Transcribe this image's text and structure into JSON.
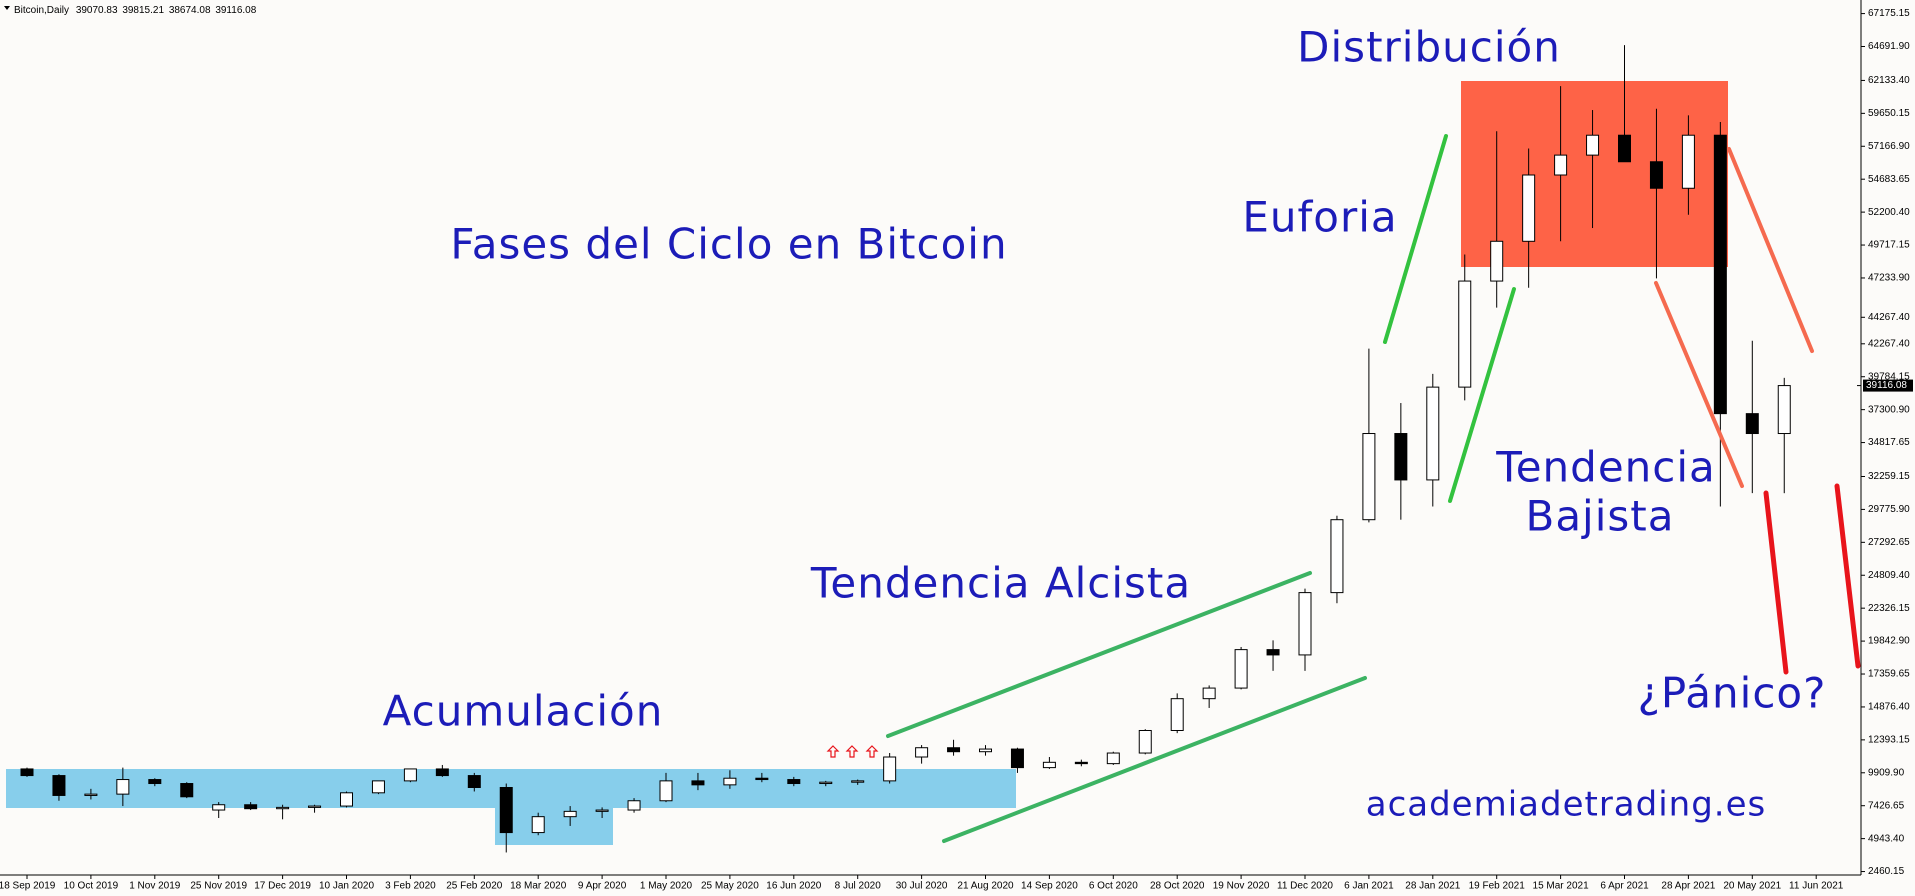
{
  "chart_data": {
    "type": "candlestick",
    "title": "Fases del Ciclo en Bitcoin",
    "header": {
      "symbol": "Bitcoin,Daily",
      "open": 39070.83,
      "high": 39815.21,
      "low": 38674.08,
      "close": 39116.08
    },
    "annotations": [
      "Distribución",
      "Euforia",
      "Tendencia Alcista",
      "Acumulación",
      "Tendencia",
      "Bajista",
      "¿Pánico?",
      "academiadetrading.es"
    ],
    "x_labels": [
      "18 Sep 2019",
      "10 Oct 2019",
      "1 Nov 2019",
      "25 Nov 2019",
      "17 Dec 2019",
      "10 Jan 2020",
      "3 Feb 2020",
      "25 Feb 2020",
      "18 Mar 2020",
      "9 Apr 2020",
      "1 May 2020",
      "25 May 2020",
      "16 Jun 2020",
      "8 Jul 2020",
      "30 Jul 2020",
      "21 Aug 2020",
      "14 Sep 2020",
      "6 Oct 2020",
      "28 Oct 2020",
      "19 Nov 2020",
      "11 Dec 2020",
      "6 Jan 2021",
      "28 Jan 2021",
      "19 Feb 2021",
      "15 Mar 2021",
      "6 Apr 2021",
      "28 Apr 2021",
      "20 May 2021",
      "11 Jun 2021"
    ],
    "open": [
      10200,
      9700,
      8200,
      8300,
      9400,
      9100,
      7100,
      7500,
      7200,
      7300,
      7400,
      8400,
      9300,
      10200,
      9700,
      8800,
      5400,
      6600,
      7000,
      7100,
      7800,
      9300,
      9000,
      9500,
      9400,
      9100,
      9200,
      9300,
      11100,
      11800,
      11500,
      11700,
      10300,
      10700,
      10600,
      11400,
      13100,
      15500,
      16300,
      19200,
      18800,
      23500,
      29000,
      35500,
      32000,
      39000,
      47000,
      50000,
      55000,
      56500,
      58000,
      56000,
      54000,
      58000,
      37000,
      35500
    ],
    "high": [
      10300,
      9800,
      8700,
      10300,
      9500,
      9200,
      7700,
      7700,
      7500,
      7500,
      8500,
      9300,
      10200,
      10500,
      9900,
      9100,
      6900,
      7400,
      7300,
      8000,
      9900,
      9900,
      10100,
      9900,
      9600,
      9300,
      9400,
      11400,
      12000,
      12400,
      12000,
      11800,
      11100,
      10900,
      11500,
      13200,
      15900,
      16500,
      19400,
      19900,
      23800,
      29300,
      41900,
      37800,
      40000,
      49000,
      58300,
      57000,
      61700,
      59900,
      64800,
      60000,
      59500,
      59000,
      42500,
      39700
    ],
    "low": [
      9600,
      7800,
      7900,
      7400,
      8900,
      8000,
      6500,
      7100,
      6400,
      6900,
      7300,
      8300,
      9200,
      9600,
      8500,
      3900,
      5200,
      5900,
      6500,
      6900,
      7700,
      8600,
      8700,
      9200,
      8900,
      8900,
      9000,
      9100,
      10600,
      11200,
      11200,
      9900,
      10200,
      10400,
      10500,
      11300,
      12900,
      14800,
      16200,
      17600,
      17600,
      22700,
      28800,
      29000,
      30000,
      38000,
      45000,
      46500,
      50000,
      51000,
      56000,
      47200,
      52000,
      30000,
      31000,
      31000
    ],
    "close": [
      9700,
      8200,
      8300,
      9400,
      9100,
      8100,
      7500,
      7200,
      7300,
      7400,
      8400,
      9300,
      10200,
      9700,
      8800,
      5400,
      6600,
      7000,
      7100,
      7800,
      9300,
      9000,
      9500,
      9400,
      9100,
      9200,
      9300,
      11100,
      11800,
      11500,
      11700,
      10300,
      10700,
      10600,
      11400,
      13100,
      15500,
      16300,
      19200,
      18800,
      23500,
      29000,
      35500,
      32000,
      39000,
      47000,
      50000,
      55000,
      56500,
      58000,
      56000,
      54000,
      58000,
      37000,
      35500,
      39116.08
    ],
    "ylim": [
      2200,
      68200
    ],
    "yticks": [
      {
        "value": 67175.15,
        "label": "67175.15"
      },
      {
        "value": 64691.9,
        "label": "64691.90"
      },
      {
        "value": 62133.4,
        "label": "62133.40"
      },
      {
        "value": 59650.15,
        "label": "59650.15"
      },
      {
        "value": 57166.9,
        "label": "57166.90"
      },
      {
        "value": 54683.65,
        "label": "54683.65"
      },
      {
        "value": 52200.4,
        "label": "52200.40"
      },
      {
        "value": 49717.15,
        "label": "49717.15"
      },
      {
        "value": 47233.9,
        "label": "47233.90"
      },
      {
        "value": 44267.4,
        "label": "44267.40"
      },
      {
        "value": 42267.4,
        "label": "42267.40"
      },
      {
        "value": 39784.15,
        "label": "39784.15"
      },
      {
        "value": 37300.9,
        "label": "37300.90"
      },
      {
        "value": 34817.65,
        "label": "34817.65"
      },
      {
        "value": 32259.15,
        "label": "32259.15"
      },
      {
        "value": 29775.9,
        "label": "29775.90"
      },
      {
        "value": 27292.65,
        "label": "27292.65"
      },
      {
        "value": 24809.4,
        "label": "24809.40"
      },
      {
        "value": 22326.15,
        "label": "22326.15"
      },
      {
        "value": 19842.9,
        "label": "19842.90"
      },
      {
        "value": 17359.65,
        "label": "17359.65"
      },
      {
        "value": 14876.4,
        "label": "14876.40"
      },
      {
        "value": 12393.15,
        "label": "12393.15"
      },
      {
        "value": 9909.9,
        "label": "9909.90"
      },
      {
        "value": 7426.65,
        "label": "7426.65"
      },
      {
        "value": 4943.4,
        "label": "4943.40"
      },
      {
        "value": 2460.15,
        "label": "2460.15"
      }
    ],
    "up_color": "#ffffff",
    "down_color": "#000000",
    "annotation_color": "#1c1cb8"
  }
}
